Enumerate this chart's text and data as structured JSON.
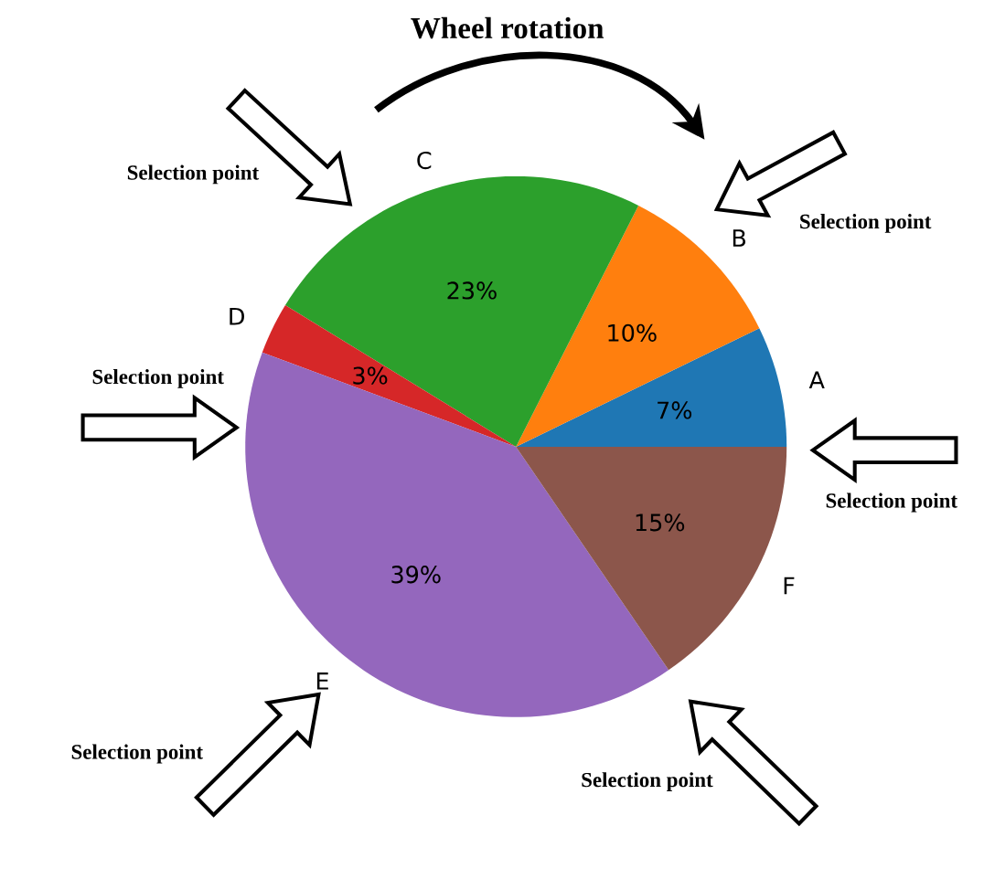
{
  "chart_data": {
    "type": "pie",
    "categories": [
      "A",
      "B",
      "C",
      "D",
      "E",
      "F"
    ],
    "values": [
      7,
      10,
      23,
      3,
      39,
      15
    ],
    "colors": [
      "#1f77b4",
      "#ff7f0e",
      "#2ca02c",
      "#d62728",
      "#9467bd",
      "#8c564b"
    ],
    "value_labels": [
      "7%",
      "10%",
      "23%",
      "3%",
      "39%",
      "15%"
    ],
    "annotations": [
      "Wheel rotation",
      "Selection point",
      "Selection point",
      "Selection point",
      "Selection point",
      "Selection point",
      "Selection point"
    ]
  }
}
